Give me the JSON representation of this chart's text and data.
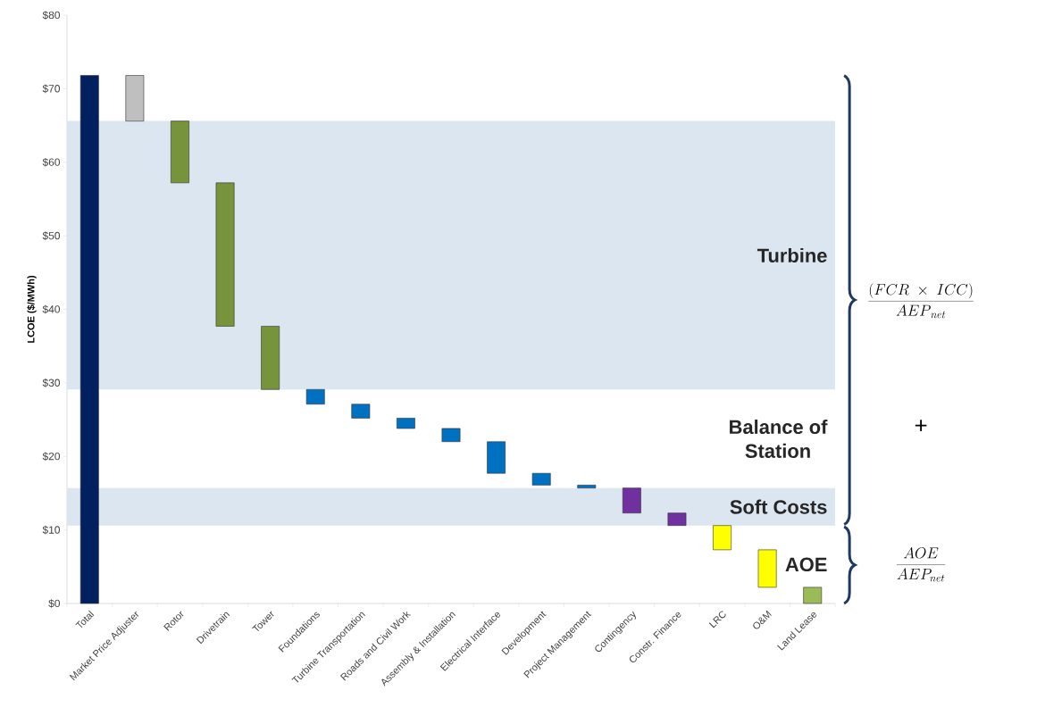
{
  "chart_data": {
    "type": "bar",
    "ylabel": "LCOE ($/MWh)",
    "categories": [
      "Total",
      "Market Price Adjuster",
      "Rotor",
      "Drivetrain",
      "Tower",
      "Foundations",
      "Turbine Transportation",
      "Roads and Civil Work",
      "Assembly & Installation",
      "Electrical Interface",
      "Development",
      "Project Management",
      "Contingency",
      "Constr. Finance",
      "LRC",
      "O&M",
      "Land Lease"
    ],
    "values": [
      71.8,
      6.2,
      8.4,
      19.5,
      8.6,
      2.0,
      1.9,
      1.4,
      1.8,
      4.3,
      1.6,
      0.4,
      3.4,
      1.7,
      3.3,
      5.1,
      2.2
    ],
    "base": [
      0,
      65.6,
      57.2,
      37.7,
      29.1,
      27.1,
      25.2,
      23.8,
      22.0,
      17.7,
      16.1,
      15.7,
      12.3,
      10.6,
      7.3,
      2.2,
      0
    ],
    "colors": [
      "#002060",
      "#bfbfbf",
      "#77933c",
      "#77933c",
      "#77933c",
      "#0070c0",
      "#0070c0",
      "#0070c0",
      "#0070c0",
      "#0070c0",
      "#0070c0",
      "#0070c0",
      "#7030a0",
      "#7030a0",
      "#ffff00",
      "#ffff00",
      "#9bbb59"
    ],
    "ylim": [
      0,
      80
    ],
    "yticks": [
      {
        "value": 0,
        "label": "$0"
      },
      {
        "value": 10,
        "label": "$10"
      },
      {
        "value": 20,
        "label": "$20"
      },
      {
        "value": 30,
        "label": "$30"
      },
      {
        "value": 40,
        "label": "$40"
      },
      {
        "value": 50,
        "label": "$50"
      },
      {
        "value": 60,
        "label": "$60"
      },
      {
        "value": 70,
        "label": "$70"
      },
      {
        "value": 80,
        "label": "$80"
      }
    ],
    "bands": [
      {
        "axis": "y",
        "from": 29.1,
        "to": 65.6,
        "label": "Turbine",
        "color": "#dce6f1"
      },
      {
        "axis": "y",
        "from": 10.6,
        "to": 15.7,
        "label": "Soft Costs",
        "color": "#dce6f1"
      }
    ],
    "annotations": [
      "Balance of Station",
      "AOE",
      "\\frac{(FCR\\ \\times\\ ICC)}{AEP_{\\,net}}",
      "+",
      "\\frac{AOE}{AEP_{net}}"
    ],
    "grid": false
  }
}
